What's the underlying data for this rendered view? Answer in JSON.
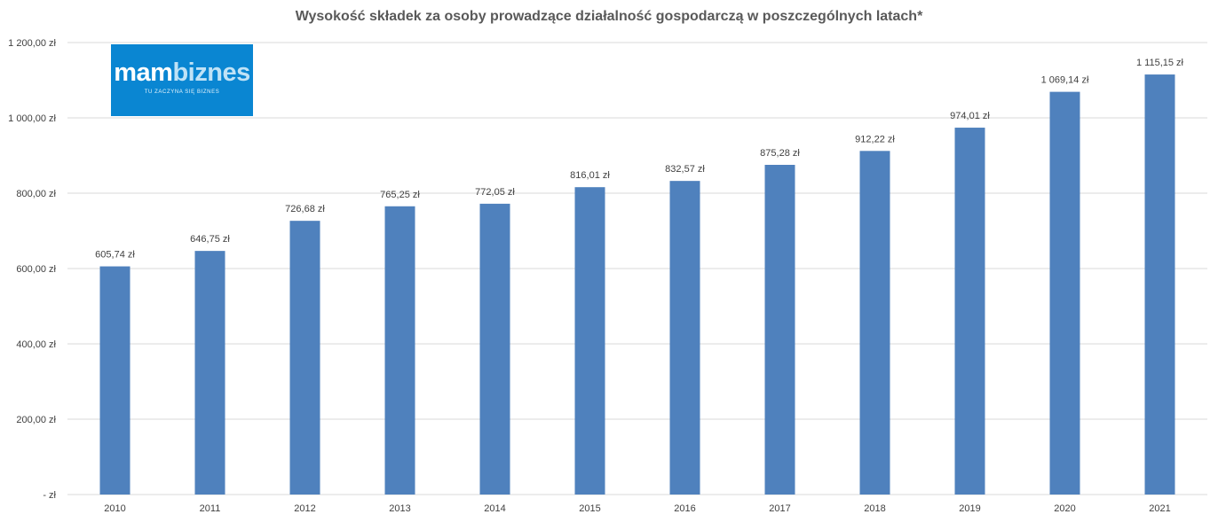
{
  "chart_data": {
    "type": "bar",
    "title": "Wysokość składek za osoby prowadzące działalność gospodarczą w poszczególnych latach*",
    "xlabel": "",
    "ylabel": "",
    "categories": [
      "2010",
      "2011",
      "2012",
      "2013",
      "2014",
      "2015",
      "2016",
      "2017",
      "2018",
      "2019",
      "2020",
      "2021"
    ],
    "values": [
      605.74,
      646.75,
      726.68,
      765.25,
      772.05,
      816.01,
      832.57,
      875.28,
      912.22,
      974.01,
      1069.14,
      1115.15
    ],
    "data_labels": [
      "605,74 zł",
      "646,75 zł",
      "726,68 zł",
      "765,25 zł",
      "772,05 zł",
      "816,01 zł",
      "832,57 zł",
      "875,28 zł",
      "912,22 zł",
      "974,01 zł",
      "1 069,14 zł",
      "1 115,15 zł"
    ],
    "ylim": [
      0,
      1200
    ],
    "yticks": [
      0,
      200,
      400,
      600,
      800,
      1000,
      1200
    ],
    "ytick_labels": [
      "-   zł",
      "200,00 zł",
      "400,00 zł",
      "600,00 zł",
      "800,00 zł",
      "1 000,00 zł",
      "1 200,00 zł"
    ],
    "grid": true,
    "legend": "none",
    "bar_color": "#4f81bd"
  },
  "logo": {
    "text_a": "mam",
    "text_b": "biznes",
    "tagline": "TU ZACZYNA SIĘ BIZNES"
  }
}
